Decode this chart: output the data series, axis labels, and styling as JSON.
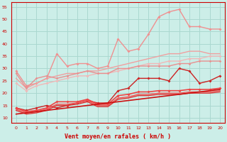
{
  "xlabel": "Vent moyen/en rafales ( km/h )",
  "background_color": "#cceee8",
  "grid_color": "#aad8d0",
  "xlim": [
    -0.5,
    20.5
  ],
  "ylim": [
    8,
    57
  ],
  "yticks": [
    10,
    15,
    20,
    25,
    30,
    35,
    40,
    45,
    50,
    55
  ],
  "xticks": [
    0,
    1,
    2,
    3,
    4,
    5,
    6,
    7,
    8,
    9,
    10,
    11,
    12,
    13,
    14,
    15,
    16,
    17,
    18,
    19,
    20
  ],
  "series": [
    {
      "x": [
        0,
        1,
        2,
        3,
        4,
        5,
        6,
        7,
        8,
        9,
        10,
        11,
        12,
        13,
        14,
        15,
        16,
        17,
        18,
        19,
        20
      ],
      "y": [
        29,
        23,
        24,
        26,
        36,
        31,
        32,
        32,
        30,
        31,
        42,
        37,
        38,
        44,
        51,
        53,
        54,
        47,
        47,
        46,
        46
      ],
      "color": "#f09090",
      "lw": 1.0,
      "marker": "D",
      "ms": 2.0
    },
    {
      "x": [
        0,
        1,
        2,
        3,
        4,
        5,
        6,
        7,
        8,
        9,
        10,
        11,
        12,
        13,
        14,
        15,
        16,
        17,
        18,
        19,
        20
      ],
      "y": [
        26,
        22,
        24,
        26,
        27,
        28,
        28,
        29,
        29,
        30,
        31,
        32,
        33,
        34,
        35,
        36,
        36,
        37,
        37,
        36,
        36
      ],
      "color": "#f0a0a0",
      "lw": 1.0,
      "marker": null,
      "ms": 0
    },
    {
      "x": [
        0,
        1,
        2,
        3,
        4,
        5,
        6,
        7,
        8,
        9,
        10,
        11,
        12,
        13,
        14,
        15,
        16,
        17,
        18,
        19,
        20
      ],
      "y": [
        24,
        21,
        23,
        24,
        25,
        26,
        27,
        27,
        28,
        28,
        29,
        30,
        31,
        32,
        32,
        33,
        33,
        34,
        34,
        35,
        35
      ],
      "color": "#f0b8b8",
      "lw": 1.0,
      "marker": "D",
      "ms": 2.0
    },
    {
      "x": [
        0,
        1,
        2,
        3,
        4,
        5,
        6,
        7,
        8,
        9,
        10,
        11,
        12,
        13,
        14,
        15,
        16,
        17,
        18,
        19,
        20
      ],
      "y": [
        28,
        22,
        26,
        27,
        26,
        27,
        28,
        29,
        28,
        28,
        30,
        30,
        31,
        31,
        31,
        31,
        32,
        32,
        33,
        33,
        33
      ],
      "color": "#e89090",
      "lw": 1.0,
      "marker": "D",
      "ms": 1.8
    },
    {
      "x": [
        0,
        1,
        2,
        3,
        4,
        5,
        6,
        7,
        8,
        9,
        10,
        11,
        12,
        13,
        14,
        15,
        16,
        17,
        18,
        19,
        20
      ],
      "y": [
        14,
        13,
        14,
        15,
        14,
        15,
        16,
        17,
        16,
        16,
        21,
        22,
        26,
        26,
        26,
        25,
        30,
        29,
        24,
        25,
        27
      ],
      "color": "#cc2222",
      "lw": 1.0,
      "marker": "D",
      "ms": 2.0
    },
    {
      "x": [
        0,
        1,
        2,
        3,
        4,
        5,
        6,
        7,
        8,
        9,
        10,
        11,
        12,
        13,
        14,
        15,
        16,
        17,
        18,
        19,
        20
      ],
      "y": [
        14.0,
        12.5,
        13.0,
        14.0,
        16.5,
        16.5,
        16.5,
        17.5,
        15.5,
        15.5,
        19.0,
        19.5,
        20.5,
        20.5,
        21.0,
        21.0,
        21.0,
        21.5,
        21.5,
        21.5,
        22.0
      ],
      "color": "#ee4444",
      "lw": 1.2,
      "marker": "D",
      "ms": 2.0
    },
    {
      "x": [
        0,
        1,
        2,
        3,
        4,
        5,
        6,
        7,
        8,
        9,
        10,
        11,
        12,
        13,
        14,
        15,
        16,
        17,
        18,
        19,
        20
      ],
      "y": [
        13.5,
        12.0,
        12.5,
        13.5,
        15.5,
        15.5,
        16.0,
        17.0,
        15.0,
        15.0,
        18.0,
        18.5,
        19.5,
        19.5,
        20.0,
        20.0,
        20.0,
        20.5,
        20.5,
        20.5,
        21.0
      ],
      "color": "#ee5555",
      "lw": 1.0,
      "marker": null,
      "ms": 0
    },
    {
      "x": [
        0,
        1,
        2,
        3,
        4,
        5,
        6,
        7,
        8,
        9,
        10,
        11,
        12,
        13,
        14,
        15,
        16,
        17,
        18,
        19,
        20
      ],
      "y": [
        13.0,
        11.5,
        12.0,
        13.0,
        15.0,
        15.0,
        15.5,
        16.5,
        14.5,
        14.5,
        17.5,
        18.0,
        19.0,
        19.0,
        19.5,
        19.5,
        19.5,
        20.0,
        20.0,
        20.0,
        20.5
      ],
      "color": "#dd3333",
      "lw": 1.0,
      "marker": null,
      "ms": 0
    },
    {
      "x": [
        0,
        1,
        2,
        3,
        4,
        5,
        6,
        7,
        8,
        9,
        10,
        11,
        12,
        13,
        14,
        15,
        16,
        17,
        18,
        19,
        20
      ],
      "y": [
        11.5,
        12.0,
        12.5,
        13.0,
        13.5,
        14.0,
        14.5,
        15.0,
        15.5,
        16.0,
        16.5,
        17.0,
        17.5,
        18.0,
        18.5,
        19.0,
        19.5,
        20.0,
        20.5,
        21.0,
        21.5
      ],
      "color": "#cc1111",
      "lw": 1.2,
      "marker": null,
      "ms": 0
    }
  ]
}
